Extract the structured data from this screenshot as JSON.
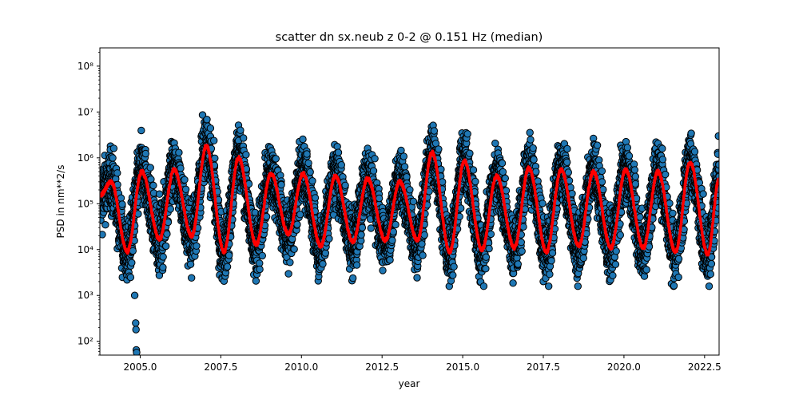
{
  "chart_data": {
    "type": "scatter",
    "title": "scatter dn sx.neub z 0-2 @ 0.151 Hz (median)",
    "xlabel": "year",
    "ylabel": "PSD in nm**2/s",
    "xlim": [
      2003.75,
      2022.95
    ],
    "ylim": [
      50,
      250000000
    ],
    "yscale": "log",
    "grid": false,
    "xticks": [
      2005.0,
      2007.5,
      2010.0,
      2012.5,
      2015.0,
      2017.5,
      2020.0,
      2022.5
    ],
    "xtick_labels": [
      "2005.0",
      "2007.5",
      "2010.0",
      "2012.5",
      "2015.0",
      "2017.5",
      "2020.0",
      "2022.5"
    ],
    "yticks": [
      100,
      1000,
      10000,
      100000,
      1000000,
      10000000,
      100000000
    ],
    "ytick_labels": [
      "10²",
      "10³",
      "10⁴",
      "10⁵",
      "10⁶",
      "10⁷",
      "10⁸"
    ],
    "scatter_color": "#1f77b4",
    "scatter_edge_color": "#000000",
    "median_color": "#ff0000",
    "series": [
      {
        "type": "scatter",
        "description_seasonal": "daily PSD values, dense seasonal oscillation between ~2e3 and ~1e7",
        "envelope": [
          {
            "year_start": 2003.75,
            "year_end": 2022.95,
            "winter_high": 10000000,
            "summer_low": 2500
          }
        ],
        "outliers": [
          {
            "x": 2004.83,
            "y": 1000
          },
          {
            "x": 2004.86,
            "y": 250
          },
          {
            "x": 2004.87,
            "y": 180
          },
          {
            "x": 2004.88,
            "y": 65
          },
          {
            "x": 2004.89,
            "y": 57
          }
        ]
      },
      {
        "type": "line",
        "peaks": [
          {
            "x": 2004.1,
            "y": 300000
          },
          {
            "x": 2005.05,
            "y": 500000
          },
          {
            "x": 2006.05,
            "y": 550000
          },
          {
            "x": 2007.05,
            "y": 1800000
          },
          {
            "x": 2008.05,
            "y": 1000000
          },
          {
            "x": 2009.05,
            "y": 450000
          },
          {
            "x": 2010.05,
            "y": 450000
          },
          {
            "x": 2011.05,
            "y": 400000
          },
          {
            "x": 2012.05,
            "y": 350000
          },
          {
            "x": 2013.05,
            "y": 300000
          },
          {
            "x": 2014.05,
            "y": 1300000
          },
          {
            "x": 2015.05,
            "y": 850000
          },
          {
            "x": 2016.05,
            "y": 400000
          },
          {
            "x": 2017.05,
            "y": 600000
          },
          {
            "x": 2018.05,
            "y": 550000
          },
          {
            "x": 2019.05,
            "y": 500000
          },
          {
            "x": 2020.05,
            "y": 550000
          },
          {
            "x": 2021.05,
            "y": 500000
          },
          {
            "x": 2022.05,
            "y": 800000
          }
        ],
        "troughs": [
          {
            "x": 2004.6,
            "y": 9000
          },
          {
            "x": 2005.6,
            "y": 17000
          },
          {
            "x": 2006.6,
            "y": 20000
          },
          {
            "x": 2007.6,
            "y": 9000
          },
          {
            "x": 2008.6,
            "y": 13000
          },
          {
            "x": 2009.6,
            "y": 22000
          },
          {
            "x": 2010.6,
            "y": 12000
          },
          {
            "x": 2011.6,
            "y": 15000
          },
          {
            "x": 2012.6,
            "y": 16000
          },
          {
            "x": 2013.6,
            "y": 16000
          },
          {
            "x": 2014.6,
            "y": 9000
          },
          {
            "x": 2015.6,
            "y": 10000
          },
          {
            "x": 2016.6,
            "y": 11000
          },
          {
            "x": 2017.6,
            "y": 9000
          },
          {
            "x": 2018.6,
            "y": 12000
          },
          {
            "x": 2019.6,
            "y": 11000
          },
          {
            "x": 2020.6,
            "y": 11000
          },
          {
            "x": 2021.6,
            "y": 9000
          },
          {
            "x": 2022.6,
            "y": 8000
          }
        ],
        "end": {
          "x": 2022.95,
          "y": 350000
        }
      }
    ]
  }
}
